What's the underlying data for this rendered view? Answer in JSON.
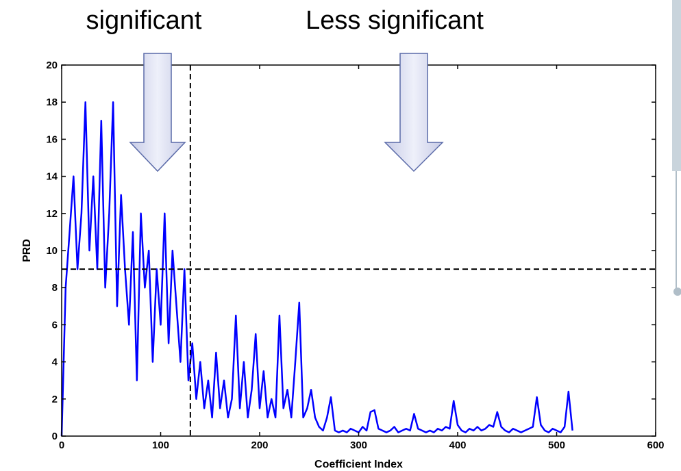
{
  "chart_data": {
    "type": "line",
    "annotations": [
      "significant",
      "Less significant"
    ],
    "x_label": "Coefficient Index",
    "y_label": "PRD",
    "xlim": [
      0,
      600
    ],
    "ylim": [
      0,
      20
    ],
    "xticks": [
      0,
      100,
      200,
      300,
      400,
      500,
      600
    ],
    "yticks": [
      0,
      2,
      4,
      6,
      8,
      10,
      12,
      14,
      16,
      18,
      20
    ],
    "vlines": [
      130
    ],
    "hlines": [
      9
    ],
    "series": [
      {
        "color": "#0000ff",
        "x": [
          0,
          4,
          8,
          12,
          16,
          20,
          24,
          28,
          32,
          36,
          40,
          44,
          48,
          52,
          56,
          60,
          64,
          68,
          72,
          76,
          80,
          84,
          88,
          92,
          96,
          100,
          104,
          108,
          112,
          116,
          120,
          124,
          128,
          132,
          136,
          140,
          144,
          148,
          152,
          156,
          160,
          164,
          168,
          172,
          176,
          180,
          184,
          188,
          192,
          196,
          200,
          204,
          208,
          212,
          216,
          220,
          224,
          228,
          232,
          236,
          240,
          244,
          248,
          252,
          256,
          260,
          264,
          268,
          272,
          276,
          280,
          284,
          288,
          292,
          296,
          300,
          304,
          308,
          312,
          316,
          320,
          324,
          328,
          332,
          336,
          340,
          344,
          348,
          352,
          356,
          360,
          364,
          368,
          372,
          376,
          380,
          384,
          388,
          392,
          396,
          400,
          404,
          408,
          412,
          416,
          420,
          424,
          428,
          432,
          436,
          440,
          444,
          448,
          452,
          456,
          460,
          464,
          468,
          472,
          476,
          480,
          484,
          488,
          492,
          496,
          500,
          504,
          508,
          512,
          516
        ],
        "values": [
          0,
          8,
          11,
          14,
          9,
          12,
          18,
          10,
          14,
          9,
          17,
          8,
          12,
          18,
          7,
          13,
          9,
          6,
          11,
          3,
          12,
          8,
          10,
          4,
          9,
          6,
          12,
          5,
          10,
          7,
          4,
          9,
          3,
          5,
          2,
          4,
          1.5,
          3,
          1,
          4.5,
          1.5,
          3,
          1,
          2,
          6.5,
          1.5,
          4,
          1,
          2.5,
          5.5,
          1.5,
          3.5,
          1,
          2,
          1,
          6.5,
          1.5,
          2.5,
          1,
          4,
          7.2,
          1,
          1.5,
          2.5,
          1,
          0.5,
          0.3,
          1,
          2.1,
          0.3,
          0.2,
          0.3,
          0.2,
          0.4,
          0.3,
          0.2,
          0.5,
          0.3,
          1.3,
          1.4,
          0.4,
          0.3,
          0.2,
          0.3,
          0.5,
          0.2,
          0.3,
          0.4,
          0.3,
          1.2,
          0.4,
          0.3,
          0.2,
          0.3,
          0.2,
          0.4,
          0.3,
          0.5,
          0.4,
          1.9,
          0.6,
          0.3,
          0.2,
          0.4,
          0.3,
          0.5,
          0.3,
          0.4,
          0.6,
          0.5,
          1.3,
          0.5,
          0.3,
          0.2,
          0.4,
          0.3,
          0.2,
          0.3,
          0.4,
          0.5,
          2.1,
          0.6,
          0.3,
          0.2,
          0.4,
          0.3,
          0.2,
          0.5,
          2.4,
          0.3
        ]
      }
    ]
  }
}
